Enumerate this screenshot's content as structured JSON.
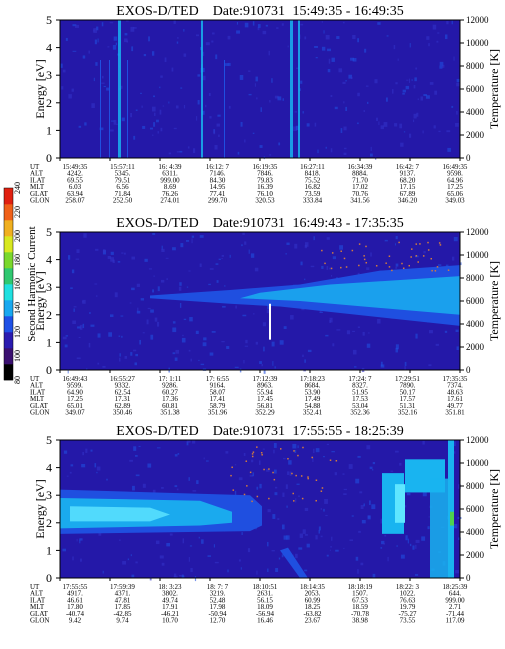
{
  "chart_data": [
    {
      "type": "heatmap",
      "title": "EXOS-D/TED Date:910731 15:49:35 - 16:49:35",
      "instrument": "EXOS-D/TED",
      "date_label": "Date:910731",
      "time_range": "15:49:35 - 16:49:35",
      "ylabel": "Energy [eV]",
      "ylabel_right": "Temperature [K]",
      "ylim": [
        0,
        5
      ],
      "yticks": [
        0,
        1,
        2,
        3,
        4,
        5
      ],
      "ylim_right": [
        0,
        12000
      ],
      "yticks_right": [
        0,
        2000,
        4000,
        6000,
        8000,
        10000,
        12000
      ],
      "ephemeris": {
        "labels": [
          "UT",
          "ALT",
          "ILAT",
          "MLT",
          "GLAT",
          "GLON"
        ],
        "rows": [
          [
            "15:49:35",
            "15:57:11",
            "16: 4:39",
            "16:12: 7",
            "16:19:35",
            "16:27:11",
            "16:34:39",
            "16:42: 7",
            "16:49:35"
          ],
          [
            "4242.",
            "5345.",
            "6311.",
            "7146.",
            "7846.",
            "8418.",
            "8884.",
            "9137.",
            "9598."
          ],
          [
            "69.55",
            "79.51",
            "999.00",
            "84.30",
            "79.83",
            "75.52",
            "71.70",
            "68.20",
            "64.96"
          ],
          [
            "6.03",
            "6.56",
            "8.69",
            "14.95",
            "16.39",
            "16.82",
            "17.02",
            "17.15",
            "17.25"
          ],
          [
            "63.94",
            "71.84",
            "76.26",
            "77.41",
            "76.10",
            "73.59",
            "70.76",
            "67.89",
            "65.06"
          ],
          [
            "258.07",
            "252.50",
            "274.01",
            "299.70",
            "320.53",
            "333.84",
            "341.56",
            "346.20",
            "349.03"
          ]
        ]
      }
    },
    {
      "type": "heatmap",
      "title": "EXOS-D/TED Date:910731 16:49:43 - 17:35:35",
      "instrument": "EXOS-D/TED",
      "date_label": "Date:910731",
      "time_range": "16:49:43 - 17:35:35",
      "ylabel": "Energy [eV]",
      "ylabel_right": "Temperature [K]",
      "ylim": [
        0,
        5
      ],
      "yticks": [
        0,
        1,
        2,
        3,
        4,
        5
      ],
      "ylim_right": [
        0,
        12000
      ],
      "yticks_right": [
        0,
        2000,
        4000,
        6000,
        8000,
        10000,
        12000
      ],
      "colorbar": {
        "label": "Second Harmonic Current",
        "range": [
          80,
          240
        ],
        "ticks": [
          80,
          100,
          120,
          140,
          160,
          180,
          200,
          220,
          240
        ]
      },
      "ephemeris": {
        "labels": [
          "UT",
          "ALT",
          "ILAT",
          "MLT",
          "GLAT",
          "GLON"
        ],
        "rows": [
          [
            "16:49:43",
            "16:55:27",
            "17: 1:11",
            "17: 6:55",
            "17:12:39",
            "17:18:23",
            "17:24: 7",
            "17:29:51",
            "17:35:35"
          ],
          [
            "9599.",
            "9332.",
            "9286.",
            "9164.",
            "8963.",
            "8684.",
            "8327.",
            "7890.",
            "7374."
          ],
          [
            "64.90",
            "62.54",
            "60.27",
            "58.07",
            "55.94",
            "53.90",
            "51.95",
            "50.17",
            "48.63"
          ],
          [
            "17.25",
            "17.31",
            "17.36",
            "17.41",
            "17.45",
            "17.49",
            "17.53",
            "17.57",
            "17.61"
          ],
          [
            "65.01",
            "62.89",
            "60.81",
            "58.79",
            "56.81",
            "54.88",
            "53.04",
            "51.31",
            "49.77"
          ],
          [
            "349.07",
            "350.46",
            "351.38",
            "351.96",
            "352.29",
            "352.41",
            "352.36",
            "352.16",
            "351.81"
          ]
        ]
      }
    },
    {
      "type": "heatmap",
      "title": "EXOS-D/TED Date:910731 17:55:55 - 18:25:39",
      "instrument": "EXOS-D/TED",
      "date_label": "Date:910731",
      "time_range": "17:55:55 - 18:25:39",
      "ylabel": "Energy [eV]",
      "ylabel_right": "Temperature [K]",
      "ylim": [
        0,
        5
      ],
      "yticks": [
        0,
        1,
        2,
        3,
        4,
        5
      ],
      "ylim_right": [
        0,
        12000
      ],
      "yticks_right": [
        0,
        2000,
        4000,
        6000,
        8000,
        10000,
        12000
      ],
      "ephemeris": {
        "labels": [
          "UT",
          "ALT",
          "ILAT",
          "MLT",
          "GLAT",
          "GLON"
        ],
        "rows": [
          [
            "17:55:55",
            "17:59:39",
            "18: 3:23",
            "18: 7: 7",
            "18:10:51",
            "18:14:35",
            "18:18:19",
            "18:22: 3",
            "18:25:39"
          ],
          [
            "4917.",
            "4371.",
            "3802.",
            "3219.",
            "2631.",
            "2053.",
            "1507.",
            "1022.",
            "644."
          ],
          [
            "46.61",
            "47.81",
            "49.74",
            "52.48",
            "56.15",
            "60.99",
            "67.53",
            "76.63",
            "999.00"
          ],
          [
            "17.80",
            "17.85",
            "17.91",
            "17.98",
            "18.09",
            "18.25",
            "18.59",
            "19.79",
            "2.71"
          ],
          [
            "-40.74",
            "-42.85",
            "-46.21",
            "-50.94",
            "-56.94",
            "-63.82",
            "-70.78",
            "-75.27",
            "-71.44"
          ],
          [
            "9.42",
            "9.74",
            "10.70",
            "12.70",
            "16.46",
            "23.67",
            "38.98",
            "73.55",
            "117.09"
          ]
        ]
      }
    }
  ],
  "colors": {
    "background": "#2418a8",
    "low": "#3232c8",
    "mid": "#1f4fe0",
    "high": "#19b4f0",
    "peak": "#5fe6ff",
    "spike": "#ffffff",
    "dots": "#d07a40"
  }
}
